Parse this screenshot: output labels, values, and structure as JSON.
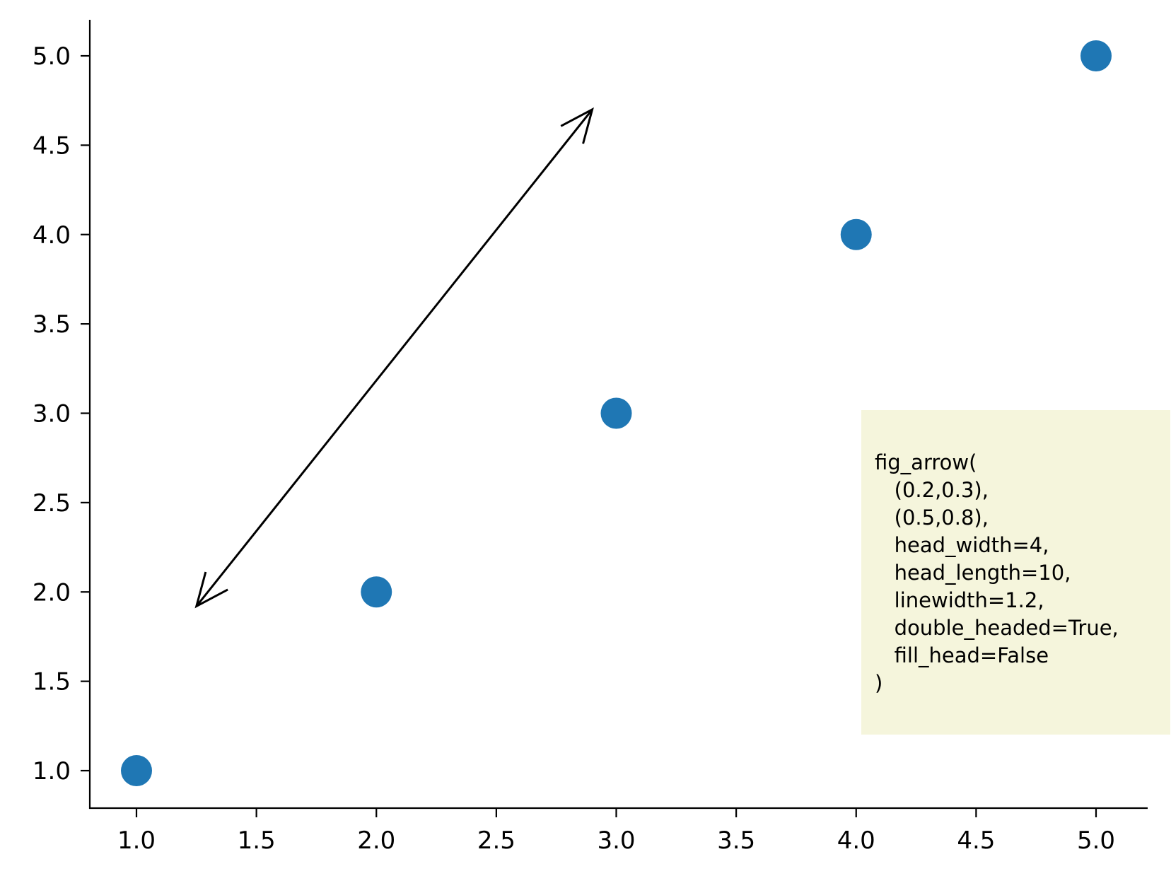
{
  "chart_data": {
    "type": "scatter",
    "x": [
      1.0,
      2.0,
      3.0,
      4.0,
      5.0
    ],
    "y": [
      1.0,
      2.0,
      3.0,
      4.0,
      5.0
    ],
    "xlim": [
      0.8,
      5.2
    ],
    "ylim": [
      0.8,
      5.2
    ],
    "xticks": [
      "1.0",
      "1.5",
      "2.0",
      "2.5",
      "3.0",
      "3.5",
      "4.0",
      "4.5",
      "5.0"
    ],
    "yticks": [
      "1.0",
      "1.5",
      "2.0",
      "2.5",
      "3.0",
      "3.5",
      "4.0",
      "4.5",
      "5.0"
    ],
    "title": "",
    "xlabel": "",
    "ylabel": "",
    "grid": false,
    "point_color": "#1f77b4",
    "spines": [
      "left",
      "bottom"
    ],
    "annotation_arrow": {
      "from": [
        1.25,
        1.92
      ],
      "to": [
        2.9,
        4.7
      ],
      "double_headed": true,
      "fill_head": false,
      "color": "#000000"
    },
    "note_box": {
      "background": "#f5f5dc",
      "lines": [
        "fig_arrow(",
        "   (0.2,0.3),",
        "   (0.5,0.8),",
        "   head_width=4,",
        "   head_length=10,",
        "   linewidth=1.2,",
        "   double_headed=True,",
        "   fill_head=False",
        ")"
      ]
    }
  }
}
